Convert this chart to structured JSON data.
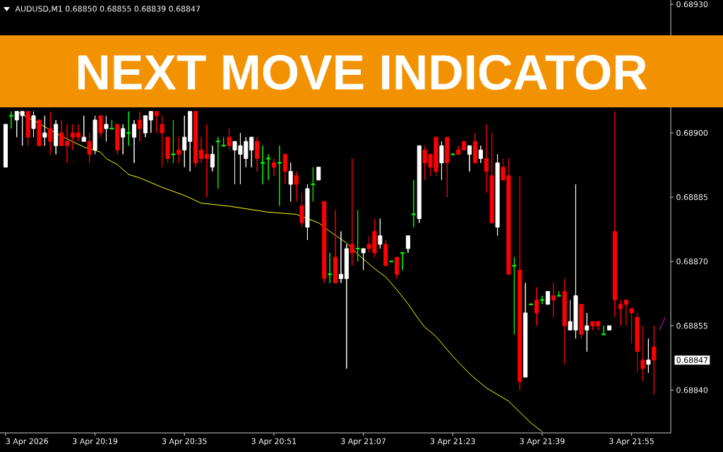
{
  "chart_data": {
    "type": "candlestick",
    "title": "NEXT MOVE INDICATOR",
    "subtitle": "AUDUSD,M1 0.68850 0.68855 0.68839 0.68847",
    "xlim": [
      "2026-04-03T20:02",
      "2026-04-03T22:02"
    ],
    "ylim": [
      0.6883,
      0.68931
    ],
    "xticks": [
      {
        "value": "2026-04-03T20:03",
        "label": "3 Apr 2026"
      },
      {
        "value": "2026-04-03T20:19",
        "label": "3 Apr 20:19"
      },
      {
        "value": "2026-04-03T20:35",
        "label": "3 Apr 20:35"
      },
      {
        "value": "2026-04-03T20:51",
        "label": "3 Apr 20:51"
      },
      {
        "value": "2026-04-03T21:07",
        "label": "3 Apr 21:07"
      },
      {
        "value": "2026-04-03T21:23",
        "label": "3 Apr 21:23"
      },
      {
        "value": "2026-04-03T21:39",
        "label": "3 Apr 21:39"
      },
      {
        "value": "2026-04-03T21:55",
        "label": "3 Apr 21:55"
      }
    ],
    "yticks": [
      {
        "value": 0.6884,
        "label": "0.68840"
      },
      {
        "value": 0.68855,
        "label": "0.68855"
      },
      {
        "value": 0.6887,
        "label": "0.68870"
      },
      {
        "value": 0.68885,
        "label": "0.68885"
      },
      {
        "value": 0.689,
        "label": "0.68900"
      },
      {
        "value": 0.6893,
        "label": "0.68930"
      }
    ],
    "annotations": [
      "0.68847"
    ],
    "series": [
      {
        "color": "#ffffff",
        "x": [
          "2026-04-03T20:03",
          "2026-04-03T20:05",
          "2026-04-03T20:06",
          "2026-04-03T20:08",
          "2026-04-03T20:10",
          "2026-04-03T20:12",
          "2026-04-03T20:17",
          "2026-04-03T20:19",
          "2026-04-03T20:21",
          "2026-04-03T20:24",
          "2026-04-03T20:26",
          "2026-04-03T20:28",
          "2026-04-03T20:29",
          "2026-04-03T20:35",
          "2026-04-03T20:36",
          "2026-04-03T20:40",
          "2026-04-03T20:44",
          "2026-04-03T20:45",
          "2026-04-03T20:46",
          "2026-04-03T20:47",
          "2026-04-03T20:54",
          "2026-04-03T20:57",
          "2026-04-03T20:59",
          "2026-04-03T21:03",
          "2026-04-03T21:04",
          "2026-04-03T21:07",
          "2026-04-03T21:10",
          "2026-04-03T21:15",
          "2026-04-03T21:17",
          "2026-04-03T21:21",
          "2026-04-03T21:26",
          "2026-04-03T21:28",
          "2026-04-03T21:31",
          "2026-04-03T21:36",
          "2026-04-03T21:40",
          "2026-04-03T21:44",
          "2026-04-03T21:45",
          "2026-04-03T21:47",
          "2026-04-03T21:51",
          "2026-04-03T21:58"
        ],
        "ohlc": [
          [
            0.68892,
            0.68902,
            0.68892,
            0.68902
          ],
          [
            0.68903,
            0.68905,
            0.68899,
            0.68905
          ],
          [
            0.68904,
            0.68905,
            0.68897,
            0.68905
          ],
          [
            0.68901,
            0.68905,
            0.68899,
            0.68904
          ],
          [
            0.68899,
            0.68904,
            0.68897,
            0.689
          ],
          [
            0.68897,
            0.68903,
            0.68895,
            0.68902
          ],
          [
            0.68898,
            0.68904,
            0.68898,
            0.68899
          ],
          [
            0.68896,
            0.68904,
            0.68895,
            0.68903
          ],
          [
            0.68901,
            0.68904,
            0.68898,
            0.68902
          ],
          [
            0.68899,
            0.68902,
            0.68895,
            0.68901
          ],
          [
            0.68899,
            0.68903,
            0.68893,
            0.68902
          ],
          [
            0.689,
            0.68904,
            0.68899,
            0.68904
          ],
          [
            0.68903,
            0.68905,
            0.689,
            0.68905
          ],
          [
            0.68896,
            0.68904,
            0.68892,
            0.68899
          ],
          [
            0.68898,
            0.68905,
            0.68891,
            0.68905
          ],
          [
            0.68892,
            0.68897,
            0.68891,
            0.68895
          ],
          [
            0.68896,
            0.68898,
            0.68888,
            0.68898
          ],
          [
            0.68895,
            0.689,
            0.68888,
            0.68897
          ],
          [
            0.68894,
            0.68899,
            0.68892,
            0.68898
          ],
          [
            0.68896,
            0.68899,
            0.68892,
            0.68899
          ],
          [
            0.68888,
            0.68893,
            0.68884,
            0.68891
          ],
          [
            0.68878,
            0.68888,
            0.68875,
            0.68887
          ],
          [
            0.68889,
            0.68892,
            0.68889,
            0.68892
          ],
          [
            0.68866,
            0.68877,
            0.68865,
            0.68867
          ],
          [
            0.68866,
            0.68874,
            0.68845,
            0.68873
          ],
          [
            0.68872,
            0.68873,
            0.68868,
            0.68873
          ],
          [
            0.68874,
            0.6888,
            0.68873,
            0.68876
          ],
          [
            0.68873,
            0.68876,
            0.68872,
            0.68876
          ],
          [
            0.6888,
            0.68897,
            0.68879,
            0.68897
          ],
          [
            0.68893,
            0.68898,
            0.68889,
            0.68897
          ],
          [
            0.68895,
            0.68897,
            0.68891,
            0.68897
          ],
          [
            0.68894,
            0.68897,
            0.68893,
            0.68896
          ],
          [
            0.68878,
            0.68895,
            0.68876,
            0.68893
          ],
          [
            0.68843,
            0.68865,
            0.68843,
            0.68858
          ],
          [
            0.6886,
            0.68863,
            0.6886,
            0.68863
          ],
          [
            0.68854,
            0.68861,
            0.68854,
            0.68856
          ],
          [
            0.68854,
            0.68888,
            0.68852,
            0.68862
          ],
          [
            0.68854,
            0.68858,
            0.68849,
            0.68855
          ],
          [
            0.68854,
            0.68855,
            0.68854,
            0.68855
          ],
          [
            0.68846,
            0.68852,
            0.68844,
            0.68847
          ]
        ]
      },
      {
        "color": "#00ff00",
        "x": [
          "2026-04-03T20:04",
          "2026-04-03T20:22",
          "2026-04-03T20:25",
          "2026-04-03T20:33",
          "2026-04-03T20:41",
          "2026-04-03T20:42",
          "2026-04-03T20:49",
          "2026-04-03T20:50",
          "2026-04-03T20:52",
          "2026-04-03T20:58",
          "2026-04-03T21:01",
          "2026-04-03T21:06",
          "2026-04-03T21:12",
          "2026-04-03T21:14",
          "2026-04-03T21:16",
          "2026-04-03T21:23",
          "2026-04-03T21:34",
          "2026-04-03T21:37",
          "2026-04-03T21:39",
          "2026-04-03T21:42",
          "2026-04-03T21:50"
        ],
        "ohlc": [
          [
            0.68904,
            0.68905,
            0.68901,
            0.68904
          ],
          [
            0.68901,
            0.68903,
            0.68901,
            0.68901
          ],
          [
            0.689,
            0.68905,
            0.68897,
            0.689
          ],
          [
            0.68895,
            0.68903,
            0.68893,
            0.68895
          ],
          [
            0.68898,
            0.68899,
            0.68887,
            0.68898
          ],
          [
            0.68897,
            0.68899,
            0.68897,
            0.68897
          ],
          [
            0.68893,
            0.68897,
            0.68888,
            0.68893
          ],
          [
            0.68894,
            0.68895,
            0.68889,
            0.68894
          ],
          [
            0.68893,
            0.68897,
            0.68883,
            0.68893
          ],
          [
            0.68888,
            0.68892,
            0.68884,
            0.68888
          ],
          [
            0.68867,
            0.68872,
            0.68865,
            0.68867
          ],
          [
            0.68873,
            0.68882,
            0.6887,
            0.68873
          ],
          [
            0.6887,
            0.6887,
            0.6887,
            0.6887
          ],
          [
            0.68872,
            0.68872,
            0.68868,
            0.68872
          ],
          [
            0.68881,
            0.68889,
            0.68878,
            0.68881
          ],
          [
            0.68895,
            0.68895,
            0.68895,
            0.68895
          ],
          [
            0.68869,
            0.68871,
            0.68853,
            0.68869
          ],
          [
            0.6886,
            0.6886,
            0.6886,
            0.6886
          ],
          [
            0.68861,
            0.68862,
            0.6886,
            0.68861
          ],
          [
            0.68862,
            0.68863,
            0.68862,
            0.68862
          ],
          [
            0.68853,
            0.68855,
            0.68853,
            0.68853
          ]
        ]
      },
      {
        "color": "#ff0000",
        "x": [
          "2026-04-03T20:07",
          "2026-04-03T20:09",
          "2026-04-03T20:11",
          "2026-04-03T20:13",
          "2026-04-03T20:14",
          "2026-04-03T20:15",
          "2026-04-03T20:16",
          "2026-04-03T20:18",
          "2026-04-03T20:20",
          "2026-04-03T20:23",
          "2026-04-03T20:27",
          "2026-04-03T20:30",
          "2026-04-03T20:31",
          "2026-04-03T20:32",
          "2026-04-03T20:34",
          "2026-04-03T20:37",
          "2026-04-03T20:38",
          "2026-04-03T20:39",
          "2026-04-03T20:43",
          "2026-04-03T20:48",
          "2026-04-03T20:51",
          "2026-04-03T20:53",
          "2026-04-03T20:55",
          "2026-04-03T20:56",
          "2026-04-03T21:00",
          "2026-04-03T21:02",
          "2026-04-03T21:05",
          "2026-04-03T21:08",
          "2026-04-03T21:09",
          "2026-04-03T21:11",
          "2026-04-03T21:13",
          "2026-04-03T21:18",
          "2026-04-03T21:19",
          "2026-04-03T21:20",
          "2026-04-03T21:22",
          "2026-04-03T21:24",
          "2026-04-03T21:25",
          "2026-04-03T21:27",
          "2026-04-03T21:29",
          "2026-04-03T21:30",
          "2026-04-03T21:32",
          "2026-04-03T21:33",
          "2026-04-03T21:35",
          "2026-04-03T21:38",
          "2026-04-03T21:41",
          "2026-04-03T21:43",
          "2026-04-03T21:46",
          "2026-04-03T21:48",
          "2026-04-03T21:49",
          "2026-04-03T21:52",
          "2026-04-03T21:53",
          "2026-04-03T21:54",
          "2026-04-03T21:55",
          "2026-04-03T21:56",
          "2026-04-03T21:57",
          "2026-04-03T21:59"
        ],
        "ohlc": [
          [
            0.68905,
            0.68905,
            0.68897,
            0.68899
          ],
          [
            0.68903,
            0.68903,
            0.68897,
            0.68897
          ],
          [
            0.68901,
            0.68905,
            0.68895,
            0.68898
          ],
          [
            0.689,
            0.68903,
            0.68897,
            0.68897
          ],
          [
            0.68898,
            0.68902,
            0.68893,
            0.68897
          ],
          [
            0.689,
            0.68902,
            0.68896,
            0.68899
          ],
          [
            0.689,
            0.68902,
            0.68898,
            0.68899
          ],
          [
            0.68898,
            0.689,
            0.68893,
            0.68895
          ],
          [
            0.68904,
            0.68904,
            0.68899,
            0.689
          ],
          [
            0.68902,
            0.68902,
            0.68895,
            0.68896
          ],
          [
            0.68903,
            0.68905,
            0.68898,
            0.68901
          ],
          [
            0.68905,
            0.68905,
            0.689,
            0.68904
          ],
          [
            0.68902,
            0.68904,
            0.68892,
            0.689
          ],
          [
            0.68899,
            0.68899,
            0.68893,
            0.68894
          ],
          [
            0.68896,
            0.68899,
            0.68893,
            0.68895
          ],
          [
            0.68905,
            0.68905,
            0.68892,
            0.68893
          ],
          [
            0.68896,
            0.68899,
            0.68893,
            0.68894
          ],
          [
            0.68895,
            0.68902,
            0.68885,
            0.68894
          ],
          [
            0.68899,
            0.68901,
            0.68896,
            0.68897
          ],
          [
            0.68898,
            0.68899,
            0.68891,
            0.68894
          ],
          [
            0.68893,
            0.68894,
            0.6889,
            0.68892
          ],
          [
            0.68895,
            0.68895,
            0.68888,
            0.68891
          ],
          [
            0.6889,
            0.68891,
            0.68884,
            0.68888
          ],
          [
            0.68883,
            0.68886,
            0.68878,
            0.68879
          ],
          [
            0.68884,
            0.68884,
            0.68865,
            0.68866
          ],
          [
            0.68871,
            0.68882,
            0.68865,
            0.68865
          ],
          [
            0.68874,
            0.68894,
            0.68869,
            0.68872
          ],
          [
            0.68874,
            0.68876,
            0.68872,
            0.68873
          ],
          [
            0.68877,
            0.6888,
            0.68871,
            0.68872
          ],
          [
            0.68874,
            0.68875,
            0.68869,
            0.68869
          ],
          [
            0.68871,
            0.68871,
            0.68866,
            0.68867
          ],
          [
            0.68896,
            0.68897,
            0.68889,
            0.68893
          ],
          [
            0.68895,
            0.68895,
            0.6889,
            0.68892
          ],
          [
            0.68899,
            0.68899,
            0.6889,
            0.68891
          ],
          [
            0.68899,
            0.68899,
            0.68885,
            0.68893
          ],
          [
            0.68896,
            0.68897,
            0.68895,
            0.68895
          ],
          [
            0.68898,
            0.68898,
            0.68896,
            0.68896
          ],
          [
            0.68898,
            0.689,
            0.68893,
            0.68893
          ],
          [
            0.68894,
            0.68902,
            0.68886,
            0.68891
          ],
          [
            0.6889,
            0.689,
            0.68879,
            0.68879
          ],
          [
            0.68892,
            0.68894,
            0.68889,
            0.68889
          ],
          [
            0.6889,
            0.68894,
            0.68867,
            0.68867
          ],
          [
            0.68868,
            0.6889,
            0.6884,
            0.68842
          ],
          [
            0.68861,
            0.68864,
            0.68855,
            0.68858
          ],
          [
            0.68862,
            0.68865,
            0.68857,
            0.68861
          ],
          [
            0.68863,
            0.68866,
            0.68846,
            0.68855
          ],
          [
            0.6886,
            0.6886,
            0.68852,
            0.68853
          ],
          [
            0.68856,
            0.68856,
            0.68854,
            0.68855
          ],
          [
            0.68856,
            0.68856,
            0.68854,
            0.68855
          ],
          [
            0.68877,
            0.68905,
            0.68857,
            0.68861
          ],
          [
            0.6886,
            0.68861,
            0.68855,
            0.68859
          ],
          [
            0.68861,
            0.68861,
            0.68855,
            0.6886
          ],
          [
            0.68859,
            0.68859,
            0.68851,
            0.68858
          ],
          [
            0.68857,
            0.68858,
            0.68844,
            0.68849
          ],
          [
            0.68847,
            0.68855,
            0.68842,
            0.68845
          ],
          [
            0.6885,
            0.68855,
            0.68839,
            0.68847
          ]
        ]
      },
      {
        "type": "line",
        "color": "#ffff00",
        "x": [
          "2026-04-03T20:05",
          "2026-04-03T20:08",
          "2026-04-03T20:13",
          "2026-04-03T20:17",
          "2026-04-03T20:20",
          "2026-04-03T20:21",
          "2026-04-03T20:23",
          "2026-04-03T20:25",
          "2026-04-03T20:27",
          "2026-04-03T20:31",
          "2026-04-03T20:35",
          "2026-04-03T20:38",
          "2026-04-03T20:43",
          "2026-04-03T20:50",
          "2026-04-03T20:55",
          "2026-04-03T20:59",
          "2026-04-03T21:01",
          "2026-04-03T21:04",
          "2026-04-03T21:06",
          "2026-04-03T21:09",
          "2026-04-03T21:11",
          "2026-04-03T21:13",
          "2026-04-03T21:15",
          "2026-04-03T21:17",
          "2026-04-03T21:18",
          "2026-04-03T21:20",
          "2026-04-03T21:23",
          "2026-04-03T21:26",
          "2026-04-03T21:29",
          "2026-04-03T21:33",
          "2026-04-03T21:37",
          "2026-04-03T21:39"
        ],
        "values": [
          0.68905,
          0.689029,
          0.688992,
          0.688967,
          0.688955,
          0.68894,
          0.688926,
          0.688903,
          0.688895,
          0.688873,
          0.688854,
          0.688836,
          0.688829,
          0.688815,
          0.68881,
          0.68879,
          0.68877,
          0.688743,
          0.688717,
          0.688683,
          0.688664,
          0.688634,
          0.688601,
          0.688563,
          0.688547,
          0.688525,
          0.688479,
          0.688438,
          0.688405,
          0.688374,
          0.688323,
          0.688303
        ]
      },
      {
        "type": "line",
        "color": "#ff00ff",
        "x": [
          "2026-04-03T22:00",
          "2026-04-03T22:01"
        ],
        "values": [
          0.68854,
          0.68857
        ]
      }
    ]
  }
}
